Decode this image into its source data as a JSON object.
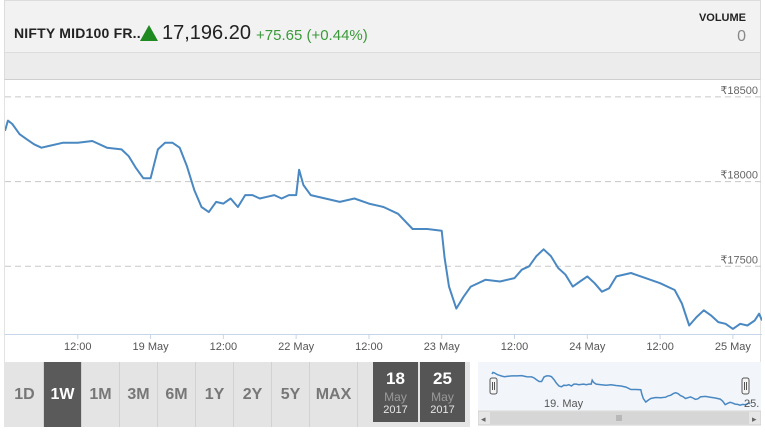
{
  "header": {
    "title": "NIFTY MID100 FR..",
    "price": "17,196.20",
    "change": "+75.65 (+0.44%)",
    "volume_label": "VOLUME",
    "volume_value": "0",
    "up_color": "#1f8a1f",
    "change_color": "#3a9a3a"
  },
  "chart_data": {
    "type": "line",
    "xlabel": "",
    "ylabel": "",
    "line_color": "#4a88c2",
    "ylim": [
      17100,
      18600
    ],
    "y_ticks": [
      {
        "value": 18500,
        "label": "₹18500"
      },
      {
        "value": 18000,
        "label": "₹18000"
      },
      {
        "value": 17500,
        "label": "₹17500"
      }
    ],
    "x_ticks": [
      "12:00",
      "19 May",
      "12:00",
      "22 May",
      "12:00",
      "23 May",
      "12:00",
      "24 May",
      "12:00",
      "25 May"
    ],
    "x_tick_pos": [
      0.5,
      1.0,
      1.5,
      2.0,
      2.5,
      3.0,
      3.5,
      4.0,
      4.5,
      5.0
    ],
    "x_range": [
      0.0,
      5.2
    ],
    "grid": true,
    "series": [
      {
        "x": [
          0.0,
          0.02,
          0.05,
          0.1,
          0.15,
          0.2,
          0.25,
          0.3,
          0.4,
          0.5,
          0.6,
          0.7,
          0.8,
          0.85,
          0.9,
          0.95,
          1.0,
          1.05,
          1.1,
          1.15,
          1.2,
          1.25,
          1.3,
          1.35,
          1.4,
          1.45,
          1.5,
          1.55,
          1.6,
          1.65,
          1.7,
          1.75,
          1.8,
          1.85,
          1.9,
          1.95,
          2.0,
          2.02,
          2.05,
          2.1,
          2.2,
          2.3,
          2.4,
          2.5,
          2.6,
          2.7,
          2.8,
          2.9,
          3.0,
          3.02,
          3.05,
          3.1,
          3.15,
          3.2,
          3.3,
          3.4,
          3.5,
          3.55,
          3.6,
          3.65,
          3.7,
          3.75,
          3.8,
          3.85,
          3.9,
          3.95,
          4.0,
          4.05,
          4.1,
          4.15,
          4.2,
          4.3,
          4.4,
          4.5,
          4.6,
          4.65,
          4.7,
          4.75,
          4.8,
          4.85,
          4.9,
          4.95,
          5.0,
          5.05,
          5.1,
          5.15,
          5.18,
          5.2
        ],
        "y": [
          18300,
          18360,
          18340,
          18280,
          18250,
          18220,
          18200,
          18210,
          18230,
          18230,
          18240,
          18200,
          18190,
          18150,
          18080,
          18020,
          18020,
          18190,
          18230,
          18230,
          18200,
          18090,
          17950,
          17850,
          17820,
          17880,
          17870,
          17900,
          17850,
          17920,
          17920,
          17900,
          17910,
          17920,
          17900,
          17920,
          17920,
          18070,
          17980,
          17920,
          17900,
          17880,
          17900,
          17870,
          17850,
          17810,
          17720,
          17720,
          17710,
          17550,
          17380,
          17250,
          17320,
          17380,
          17420,
          17410,
          17430,
          17480,
          17500,
          17560,
          17600,
          17560,
          17490,
          17450,
          17380,
          17410,
          17440,
          17400,
          17350,
          17370,
          17440,
          17460,
          17430,
          17400,
          17360,
          17280,
          17150,
          17200,
          17240,
          17210,
          17170,
          17160,
          17130,
          17160,
          17150,
          17180,
          17220,
          17180
        ]
      }
    ]
  },
  "periods": [
    "1D",
    "1W",
    "1M",
    "3M",
    "6M",
    "1Y",
    "2Y",
    "5Y",
    "MAX"
  ],
  "active_period": "1W",
  "range_from": {
    "day": "18",
    "month": "May",
    "year": "2017"
  },
  "range_to": {
    "day": "25",
    "month": "May",
    "year": "2017"
  },
  "navigator": {
    "label_1": "19. May",
    "label_2": "25."
  }
}
